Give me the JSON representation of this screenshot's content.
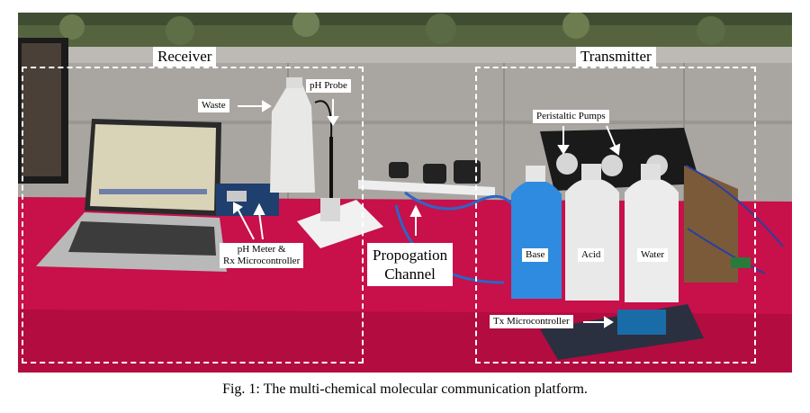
{
  "regions": {
    "receiver": "Receiver",
    "transmitter": "Transmitter"
  },
  "labels": {
    "waste": "Waste",
    "ph_probe": "pH Probe",
    "peristaltic_pumps": "Peristaltic Pumps",
    "ph_meter": "pH Meter &\nRx Microcontroller",
    "propagation_channel": "Propogation\nChannel",
    "base": "Base",
    "acid": "Acid",
    "water": "Water",
    "tx_microcontroller": "Tx Microcontroller"
  },
  "caption": "Fig. 1:  The multi-chemical molecular communication platform.",
  "colors": {
    "tablecloth": "#c8104a",
    "base_liquid": "#2f8be0",
    "wall": "#a9a6a2",
    "foliage": "#4c5a3a"
  }
}
